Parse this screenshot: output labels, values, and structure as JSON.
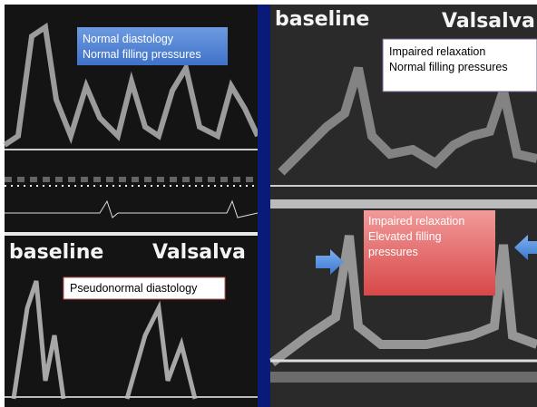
{
  "left_panel": {
    "top_box": [
      "Normal diastology",
      "Normal filling pressures"
    ],
    "bottom_labels": [
      "baseline",
      "Valsalva"
    ],
    "bottom_box": "Pseudonormal diastology"
  },
  "right_panel": {
    "top_labels": [
      "baseline",
      "Valsalva"
    ],
    "top_box": [
      "Impaired relaxation",
      "Normal filling pressures"
    ],
    "middle_box": [
      "Impaired relaxation",
      "Elevated filling",
      "pressures"
    ]
  }
}
